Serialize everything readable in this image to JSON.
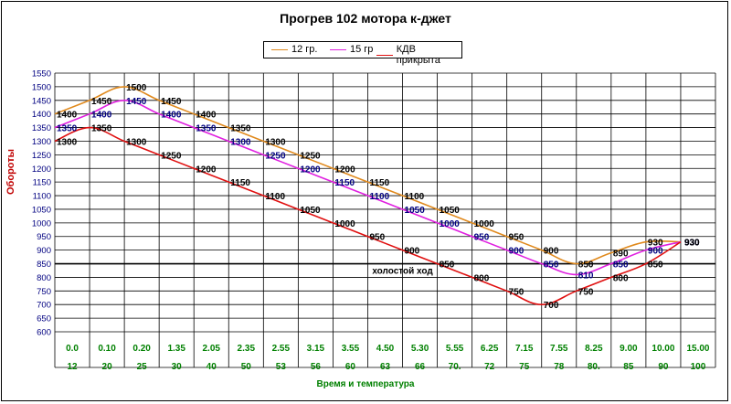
{
  "chart_data": {
    "type": "line",
    "title": "Прогрев 102 мотора к-джет",
    "ylabel": "Обороты",
    "xlabel": "Время и температура",
    "ylim": [
      600,
      1550
    ],
    "ytick_step": 50,
    "grid": true,
    "legend_position": "top-center",
    "time_labels": [
      "0.0",
      "0.10",
      "0.20",
      "1.35",
      "2.05",
      "2.35",
      "2.55",
      "3.15",
      "3.55",
      "4.50",
      "5.30",
      "5.55",
      "6.25",
      "7.15",
      "7.55",
      "8.25",
      "9.00",
      "10.00",
      "15.00"
    ],
    "temp_labels": [
      "12",
      "20",
      "25",
      "30",
      "40",
      "50",
      "53",
      "56",
      "60",
      "63",
      "66",
      "70.",
      "72",
      "75",
      "78",
      "80.",
      "85",
      "90",
      "100"
    ],
    "reference_line": {
      "value": 850,
      "label": "холостой ход",
      "color": "#000000"
    },
    "series": [
      {
        "name": "12 гр.",
        "color": "#e08a1e",
        "label_color": "#000000",
        "values": [
          1400,
          1450,
          1500,
          1450,
          1400,
          1350,
          1300,
          1250,
          1200,
          1150,
          1100,
          1050,
          1000,
          950,
          900,
          850,
          890,
          930,
          930
        ]
      },
      {
        "name": "15 гр",
        "color": "#e020e0",
        "label_color": "#000080",
        "values": [
          1350,
          1400,
          1450,
          1400,
          1350,
          1300,
          1250,
          1200,
          1150,
          1100,
          1050,
          1000,
          950,
          900,
          850,
          810,
          850,
          900,
          930
        ]
      },
      {
        "name": "КДВ прикрыта",
        "color": "#e01010",
        "label_color": "#000000",
        "values": [
          1300,
          1350,
          1300,
          1250,
          1200,
          1150,
          1100,
          1050,
          1000,
          950,
          900,
          850,
          800,
          750,
          700,
          750,
          800,
          850,
          930
        ]
      }
    ]
  }
}
